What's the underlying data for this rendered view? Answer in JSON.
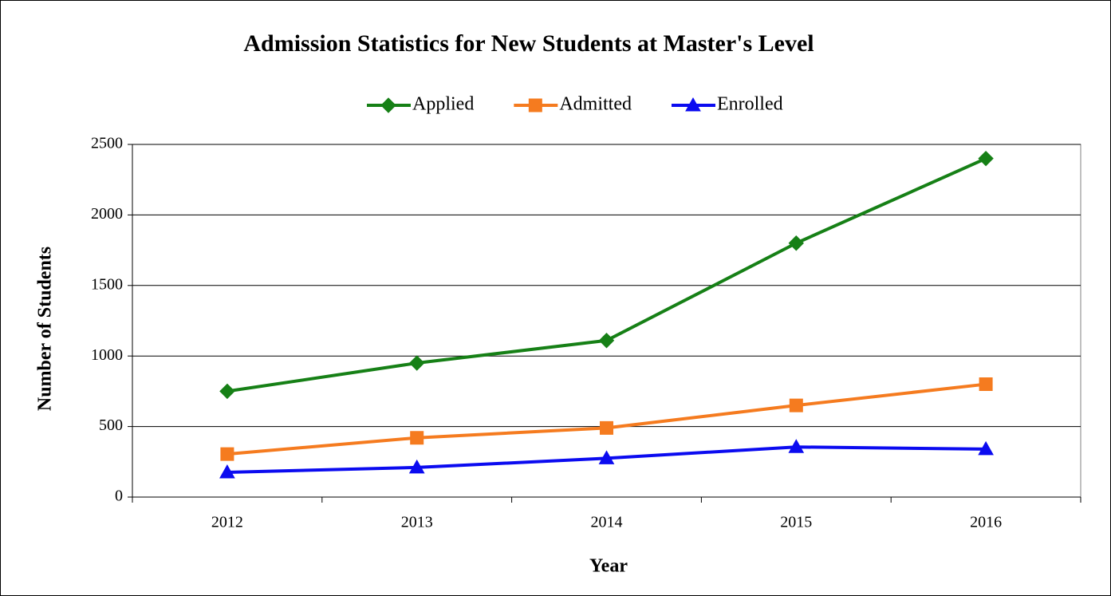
{
  "chart_data": {
    "type": "line",
    "title": "Admission Statistics for New Students at Master's Level",
    "x_label": "Year",
    "y_label": "Number of Students",
    "categories": [
      "2012",
      "2013",
      "2014",
      "2015",
      "2016"
    ],
    "series": [
      {
        "name": "Applied",
        "color": "#168016",
        "marker": "diamond",
        "values": [
          750,
          950,
          1110,
          1800,
          2400
        ]
      },
      {
        "name": "Admitted",
        "color": "#f57b1f",
        "marker": "square",
        "values": [
          305,
          420,
          490,
          650,
          800
        ]
      },
      {
        "name": "Enrolled",
        "color": "#0b0bf0",
        "marker": "triangle",
        "values": [
          175,
          210,
          275,
          355,
          340
        ]
      }
    ],
    "ylim": [
      0,
      2500
    ],
    "yticks": [
      0,
      500,
      1000,
      1500,
      2000,
      2500
    ],
    "grid": true,
    "legend": "top"
  }
}
